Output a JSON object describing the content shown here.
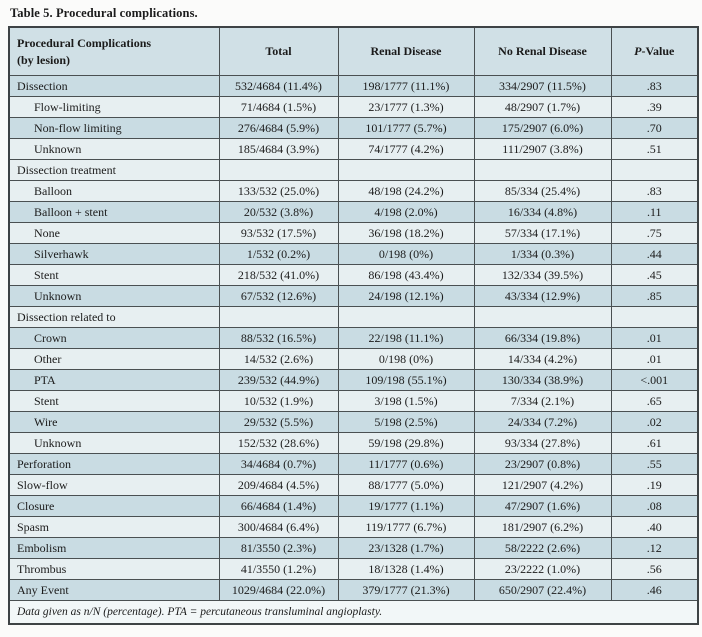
{
  "title": "Table 5. Procedural complications.",
  "table": {
    "columns": [
      {
        "label": "Procedural Complications",
        "sublabel": "(by lesion)"
      },
      {
        "label": "Total"
      },
      {
        "label": "Renal Disease"
      },
      {
        "label": "No Renal Disease"
      },
      {
        "label_italic": "P",
        "label_rest": "-Value"
      }
    ],
    "rows": [
      {
        "label": "Dissection",
        "indent": false,
        "section": false,
        "tone": "a",
        "total": "532/4684 (11.4%)",
        "renal": "198/1777 (11.1%)",
        "no_renal": "334/2907 (11.5%)",
        "p": ".83"
      },
      {
        "label": "Flow-limiting",
        "indent": true,
        "section": false,
        "tone": "b",
        "total": "71/4684 (1.5%)",
        "renal": "23/1777 (1.3%)",
        "no_renal": "48/2907 (1.7%)",
        "p": ".39"
      },
      {
        "label": "Non-flow limiting",
        "indent": true,
        "section": false,
        "tone": "a",
        "total": "276/4684 (5.9%)",
        "renal": "101/1777 (5.7%)",
        "no_renal": "175/2907 (6.0%)",
        "p": ".70"
      },
      {
        "label": "Unknown",
        "indent": true,
        "section": false,
        "tone": "b",
        "total": "185/4684 (3.9%)",
        "renal": "74/1777 (4.2%)",
        "no_renal": "111/2907 (3.8%)",
        "p": ".51"
      },
      {
        "label": "Dissection treatment",
        "indent": false,
        "section": true,
        "tone": "b",
        "total": "",
        "renal": "",
        "no_renal": "",
        "p": ""
      },
      {
        "label": "Balloon",
        "indent": true,
        "section": false,
        "tone": "b",
        "total": "133/532 (25.0%)",
        "renal": "48/198 (24.2%)",
        "no_renal": "85/334 (25.4%)",
        "p": ".83"
      },
      {
        "label": "Balloon + stent",
        "indent": true,
        "section": false,
        "tone": "a",
        "total": "20/532 (3.8%)",
        "renal": "4/198 (2.0%)",
        "no_renal": "16/334 (4.8%)",
        "p": ".11"
      },
      {
        "label": "None",
        "indent": true,
        "section": false,
        "tone": "b",
        "total": "93/532 (17.5%)",
        "renal": "36/198 (18.2%)",
        "no_renal": "57/334 (17.1%)",
        "p": ".75"
      },
      {
        "label": "Silverhawk",
        "indent": true,
        "section": false,
        "tone": "a",
        "total": "1/532 (0.2%)",
        "renal": "0/198 (0%)",
        "no_renal": "1/334 (0.3%)",
        "p": ".44"
      },
      {
        "label": "Stent",
        "indent": true,
        "section": false,
        "tone": "b",
        "total": "218/532 (41.0%)",
        "renal": "86/198 (43.4%)",
        "no_renal": "132/334 (39.5%)",
        "p": ".45"
      },
      {
        "label": "Unknown",
        "indent": true,
        "section": false,
        "tone": "a",
        "total": "67/532 (12.6%)",
        "renal": "24/198 (12.1%)",
        "no_renal": "43/334 (12.9%)",
        "p": ".85"
      },
      {
        "label": "Dissection related to",
        "indent": false,
        "section": true,
        "tone": "b",
        "total": "",
        "renal": "",
        "no_renal": "",
        "p": ""
      },
      {
        "label": "Crown",
        "indent": true,
        "section": false,
        "tone": "a",
        "total": "88/532 (16.5%)",
        "renal": "22/198 (11.1%)",
        "no_renal": "66/334 (19.8%)",
        "p": ".01"
      },
      {
        "label": "Other",
        "indent": true,
        "section": false,
        "tone": "b",
        "total": "14/532 (2.6%)",
        "renal": "0/198 (0%)",
        "no_renal": "14/334 (4.2%)",
        "p": ".01"
      },
      {
        "label": "PTA",
        "indent": true,
        "section": false,
        "tone": "a",
        "total": "239/532 (44.9%)",
        "renal": "109/198 (55.1%)",
        "no_renal": "130/334 (38.9%)",
        "p": "<.001"
      },
      {
        "label": "Stent",
        "indent": true,
        "section": false,
        "tone": "b",
        "total": "10/532 (1.9%)",
        "renal": "3/198 (1.5%)",
        "no_renal": "7/334 (2.1%)",
        "p": ".65"
      },
      {
        "label": "Wire",
        "indent": true,
        "section": false,
        "tone": "a",
        "total": "29/532 (5.5%)",
        "renal": "5/198 (2.5%)",
        "no_renal": "24/334 (7.2%)",
        "p": ".02"
      },
      {
        "label": "Unknown",
        "indent": true,
        "section": false,
        "tone": "b",
        "total": "152/532 (28.6%)",
        "renal": "59/198 (29.8%)",
        "no_renal": "93/334 (27.8%)",
        "p": ".61"
      },
      {
        "label": "Perforation",
        "indent": false,
        "section": false,
        "tone": "a",
        "total": "34/4684 (0.7%)",
        "renal": "11/1777 (0.6%)",
        "no_renal": "23/2907 (0.8%)",
        "p": ".55"
      },
      {
        "label": "Slow-flow",
        "indent": false,
        "section": false,
        "tone": "b",
        "total": "209/4684 (4.5%)",
        "renal": "88/1777 (5.0%)",
        "no_renal": "121/2907 (4.2%)",
        "p": ".19"
      },
      {
        "label": "Closure",
        "indent": false,
        "section": false,
        "tone": "a",
        "total": "66/4684 (1.4%)",
        "renal": "19/1777 (1.1%)",
        "no_renal": "47/2907 (1.6%)",
        "p": ".08"
      },
      {
        "label": "Spasm",
        "indent": false,
        "section": false,
        "tone": "b",
        "total": "300/4684 (6.4%)",
        "renal": "119/1777 (6.7%)",
        "no_renal": "181/2907 (6.2%)",
        "p": ".40"
      },
      {
        "label": "Embolism",
        "indent": false,
        "section": false,
        "tone": "a",
        "total": "81/3550 (2.3%)",
        "renal": "23/1328 (1.7%)",
        "no_renal": "58/2222 (2.6%)",
        "p": ".12"
      },
      {
        "label": "Thrombus",
        "indent": false,
        "section": false,
        "tone": "b",
        "total": "41/3550 (1.2%)",
        "renal": "18/1328 (1.4%)",
        "no_renal": "23/2222 (1.0%)",
        "p": ".56"
      },
      {
        "label": "Any Event",
        "indent": false,
        "section": false,
        "tone": "a",
        "total": "1029/4684 (22.0%)",
        "renal": "379/1777 (21.3%)",
        "no_renal": "650/2907 (22.4%)",
        "p": ".46"
      }
    ]
  },
  "footnote": "Data given as n/N (percentage). PTA = percutaneous transluminal angioplasty.",
  "colors": {
    "row_medium": "#c9dce3",
    "row_light": "#e7eff1",
    "header_bg": "#d0e0e6",
    "footnote_bg": "#f2f7f8",
    "border": "#4a5052"
  }
}
